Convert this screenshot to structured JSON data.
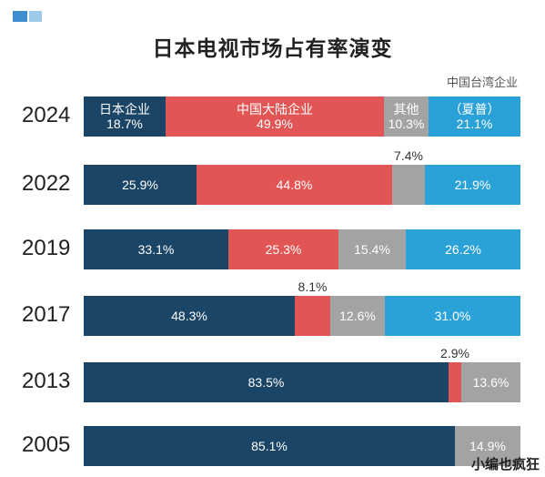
{
  "title": "日本电视市场占有率演变",
  "note_top_right": "中国台湾企业",
  "watermark": "小编也疯狂",
  "colors": {
    "japan": "#1b4566",
    "china": "#e15554",
    "other": "#a3a3a3",
    "taiwan": "#2aa2d8"
  },
  "chart_data": {
    "type": "bar",
    "orientation": "horizontal-stacked-100",
    "categories": [
      "2024",
      "2022",
      "2019",
      "2017",
      "2013",
      "2005"
    ],
    "series": [
      {
        "name": "日本企业",
        "values": [
          18.7,
          25.9,
          33.1,
          48.3,
          83.5,
          85.1
        ]
      },
      {
        "name": "中国大陆企业",
        "values": [
          49.9,
          44.8,
          25.3,
          8.1,
          2.9,
          0
        ]
      },
      {
        "name": "其他",
        "values": [
          10.3,
          7.4,
          15.4,
          12.6,
          13.6,
          14.9
        ]
      },
      {
        "name": "中国台湾企业",
        "values": [
          21.1,
          21.9,
          26.2,
          31.0,
          0,
          0
        ]
      }
    ],
    "labels_2024": {
      "japan_line1": "日本企业",
      "china_line1": "中国大陆企业",
      "other_line1": "其他",
      "taiwan_line1": "（夏普）"
    },
    "value_labels": [
      [
        "18.7%",
        "49.9%",
        "10.3%",
        "21.1%"
      ],
      [
        "25.9%",
        "44.8%",
        "7.4%",
        "21.9%"
      ],
      [
        "33.1%",
        "25.3%",
        "15.4%",
        "26.2%"
      ],
      [
        "48.3%",
        "8.1%",
        "12.6%",
        "31.0%"
      ],
      [
        "83.5%",
        "2.9%",
        "13.6%",
        ""
      ],
      [
        "85.1%",
        "",
        "14.9%",
        ""
      ]
    ]
  }
}
